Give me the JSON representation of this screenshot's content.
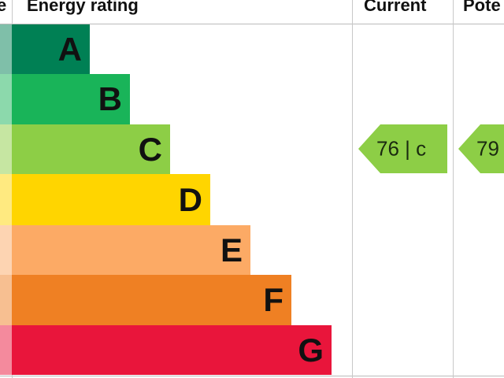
{
  "header": {
    "score_partial": "e",
    "energy_rating": "Energy rating",
    "current": "Current",
    "potential_partial": "Pote"
  },
  "chart_data": {
    "type": "bar",
    "categories": [
      "A",
      "B",
      "C",
      "D",
      "E",
      "F",
      "G"
    ],
    "colors": [
      "#008054",
      "#19b459",
      "#8dce46",
      "#ffd500",
      "#fcaa65",
      "#ef8023",
      "#e9153b"
    ],
    "tints": [
      "#7fbfa9",
      "#8cd9ac",
      "#c6e6a2",
      "#ffea80",
      "#fdd4b2",
      "#f7bf91",
      "#f48a9d"
    ],
    "current": {
      "value": 76,
      "band": "C",
      "label": "76 |  c"
    },
    "potential": {
      "value": 79,
      "band": "C",
      "label": "79"
    }
  }
}
